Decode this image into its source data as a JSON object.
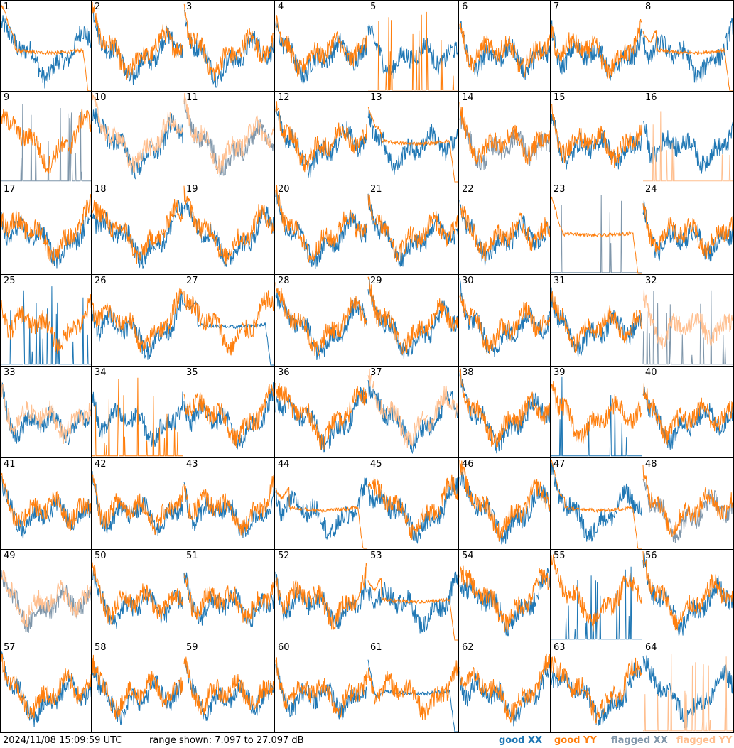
{
  "footer": {
    "timestamp": "2024/11/08 15:09:59 UTC",
    "range": "range shown: 7.097 to 27.097 dB"
  },
  "legend": [
    {
      "label": "good XX",
      "color": "#1f77b4"
    },
    {
      "label": "good YY",
      "color": "#ff7f0e"
    },
    {
      "label": "flagged XX",
      "color": "#7f96aa"
    },
    {
      "label": "flagged YY",
      "color": "#ffbf8f"
    }
  ],
  "chart_data": {
    "type": "line",
    "ylim": [
      7.097,
      27.097
    ],
    "grid": false,
    "legend_position": "bottom-right",
    "rows": 8,
    "cols": 8,
    "panels": [
      {
        "label": "1",
        "xx": "good",
        "yy": "good",
        "yy_pattern": "plateau_drop"
      },
      {
        "label": "2",
        "xx": "good",
        "yy": "good",
        "yy_pattern": "normal"
      },
      {
        "label": "3",
        "xx": "good",
        "yy": "good",
        "yy_pattern": "normal"
      },
      {
        "label": "4",
        "xx": "good",
        "yy": "good",
        "yy_pattern": "normal"
      },
      {
        "label": "5",
        "xx": "good",
        "yy": "good",
        "yy_pattern": "spikes"
      },
      {
        "label": "6",
        "xx": "good",
        "yy": "good",
        "yy_pattern": "normal"
      },
      {
        "label": "7",
        "xx": "good",
        "yy": "good",
        "yy_pattern": "normal"
      },
      {
        "label": "8",
        "xx": "good",
        "yy": "good",
        "yy_pattern": "plateau_drop"
      },
      {
        "label": "9",
        "xx": "flagged",
        "yy": "good",
        "xx_pattern": "spikes"
      },
      {
        "label": "10",
        "xx": "good",
        "yy": "flagged"
      },
      {
        "label": "11",
        "xx": "flagged",
        "yy": "flagged"
      },
      {
        "label": "12",
        "xx": "good",
        "yy": "good"
      },
      {
        "label": "13",
        "xx": "good",
        "yy": "good",
        "yy_pattern": "plateau_drop"
      },
      {
        "label": "14",
        "xx": "flagged",
        "yy": "good"
      },
      {
        "label": "15",
        "xx": "good",
        "yy": "good"
      },
      {
        "label": "16",
        "xx": "good",
        "yy": "flagged",
        "yy_pattern": "spikes"
      },
      {
        "label": "17",
        "xx": "good",
        "yy": "good"
      },
      {
        "label": "18",
        "xx": "good",
        "yy": "good"
      },
      {
        "label": "19",
        "xx": "good",
        "yy": "good"
      },
      {
        "label": "20",
        "xx": "good",
        "yy": "good"
      },
      {
        "label": "21",
        "xx": "good",
        "yy": "good"
      },
      {
        "label": "22",
        "xx": "good",
        "yy": "good"
      },
      {
        "label": "23",
        "xx": "flagged",
        "yy": "good",
        "xx_pattern": "spikes",
        "yy_pattern": "plateau_drop"
      },
      {
        "label": "24",
        "xx": "good",
        "yy": "good"
      },
      {
        "label": "25",
        "xx": "good",
        "yy": "good",
        "xx_pattern": "spikes"
      },
      {
        "label": "26",
        "xx": "good",
        "yy": "good"
      },
      {
        "label": "27",
        "xx": "good",
        "yy": "good",
        "xx_pattern": "plateau_drop"
      },
      {
        "label": "28",
        "xx": "good",
        "yy": "good"
      },
      {
        "label": "29",
        "xx": "good",
        "yy": "good"
      },
      {
        "label": "30",
        "xx": "good",
        "yy": "good"
      },
      {
        "label": "31",
        "xx": "good",
        "yy": "good"
      },
      {
        "label": "32",
        "xx": "flagged",
        "yy": "flagged",
        "xx_pattern": "spikes"
      },
      {
        "label": "33",
        "xx": "good",
        "yy": "flagged"
      },
      {
        "label": "34",
        "xx": "good",
        "yy": "good",
        "yy_pattern": "spikes"
      },
      {
        "label": "35",
        "xx": "good",
        "yy": "good"
      },
      {
        "label": "36",
        "xx": "good",
        "yy": "good"
      },
      {
        "label": "37",
        "xx": "good",
        "yy": "flagged"
      },
      {
        "label": "38",
        "xx": "good",
        "yy": "good"
      },
      {
        "label": "39",
        "xx": "good",
        "yy": "good",
        "xx_pattern": "spikes"
      },
      {
        "label": "40",
        "xx": "good",
        "yy": "good"
      },
      {
        "label": "41",
        "xx": "good",
        "yy": "good"
      },
      {
        "label": "42",
        "xx": "good",
        "yy": "good"
      },
      {
        "label": "43",
        "xx": "good",
        "yy": "good"
      },
      {
        "label": "44",
        "xx": "good",
        "yy": "good",
        "yy_pattern": "plateau_drop"
      },
      {
        "label": "45",
        "xx": "good",
        "yy": "good"
      },
      {
        "label": "46",
        "xx": "good",
        "yy": "good"
      },
      {
        "label": "47",
        "xx": "good",
        "yy": "good",
        "yy_pattern": "plateau_drop"
      },
      {
        "label": "48",
        "xx": "flagged",
        "yy": "good"
      },
      {
        "label": "49",
        "xx": "flagged",
        "yy": "flagged"
      },
      {
        "label": "50",
        "xx": "good",
        "yy": "good"
      },
      {
        "label": "51",
        "xx": "good",
        "yy": "good"
      },
      {
        "label": "52",
        "xx": "good",
        "yy": "good"
      },
      {
        "label": "53",
        "xx": "good",
        "yy": "good",
        "yy_pattern": "plateau_drop"
      },
      {
        "label": "54",
        "xx": "good",
        "yy": "good"
      },
      {
        "label": "55",
        "xx": "good",
        "yy": "good",
        "xx_pattern": "spikes"
      },
      {
        "label": "56",
        "xx": "good",
        "yy": "good"
      },
      {
        "label": "57",
        "xx": "good",
        "yy": "good"
      },
      {
        "label": "58",
        "xx": "good",
        "yy": "good"
      },
      {
        "label": "59",
        "xx": "good",
        "yy": "good"
      },
      {
        "label": "60",
        "xx": "good",
        "yy": "good"
      },
      {
        "label": "61",
        "xx": "good",
        "yy": "good",
        "xx_pattern": "plateau_drop"
      },
      {
        "label": "62",
        "xx": "good",
        "yy": "good"
      },
      {
        "label": "63",
        "xx": "good",
        "yy": "good"
      },
      {
        "label": "64",
        "xx": "good",
        "yy": "flagged",
        "yy_pattern": "spikes"
      }
    ]
  }
}
